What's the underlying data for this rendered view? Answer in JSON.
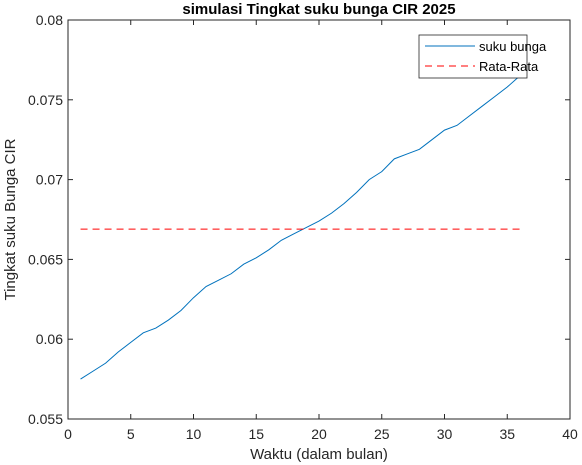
{
  "chart_data": {
    "type": "line",
    "title": "simulasi Tingkat suku bunga CIR 2025",
    "xlabel": "Waktu (dalam bulan)",
    "ylabel": "Tingkat suku Bunga CIR",
    "xlim": [
      0,
      40
    ],
    "ylim": [
      0.055,
      0.08
    ],
    "xticks": [
      0,
      5,
      10,
      15,
      20,
      25,
      30,
      35,
      40
    ],
    "yticks": [
      0.055,
      0.06,
      0.065,
      0.07,
      0.075,
      0.08
    ],
    "xtick_labels": [
      "0",
      "5",
      "10",
      "15",
      "20",
      "25",
      "30",
      "35",
      "40"
    ],
    "ytick_labels": [
      "0.055",
      "0.06",
      "0.065",
      "0.07",
      "0.075",
      "0.08"
    ],
    "grid": false,
    "legend_position": "top-right",
    "series": [
      {
        "name": "suku bunga",
        "color": "#0072BD",
        "style": "solid",
        "x": [
          1,
          2,
          3,
          4,
          5,
          6,
          7,
          8,
          9,
          10,
          11,
          12,
          13,
          14,
          15,
          16,
          17,
          18,
          19,
          20,
          21,
          22,
          23,
          24,
          25,
          26,
          27,
          28,
          29,
          30,
          31,
          32,
          33,
          34,
          35,
          36
        ],
        "y": [
          0.0575,
          0.058,
          0.0585,
          0.0592,
          0.0598,
          0.0604,
          0.0607,
          0.0612,
          0.0618,
          0.0626,
          0.0633,
          0.0637,
          0.0641,
          0.0647,
          0.0651,
          0.0656,
          0.0662,
          0.0666,
          0.067,
          0.0674,
          0.0679,
          0.0685,
          0.0692,
          0.07,
          0.0705,
          0.0713,
          0.0716,
          0.0719,
          0.0725,
          0.0731,
          0.0734,
          0.074,
          0.0746,
          0.0752,
          0.0758,
          0.0765
        ]
      },
      {
        "name": "Rata-Rata",
        "color": "#FF0000",
        "style": "dashed",
        "x": [
          1,
          36
        ],
        "y": [
          0.0669,
          0.0669
        ]
      }
    ]
  }
}
